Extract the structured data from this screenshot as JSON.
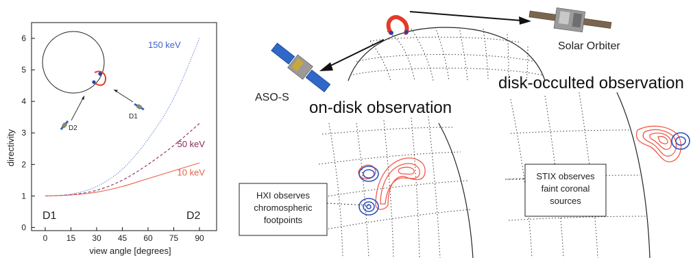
{
  "chart_data": {
    "type": "line",
    "title": "",
    "xlabel": "view angle [degrees]",
    "ylabel": "directivity",
    "xlim": [
      -8,
      100
    ],
    "ylim": [
      -0.1,
      6.5
    ],
    "xticks": [
      "0",
      "15",
      "30",
      "45",
      "60",
      "75",
      "90"
    ],
    "yticks": [
      "0",
      "1",
      "2",
      "3",
      "4",
      "5",
      "6"
    ],
    "grid": false,
    "legend": "inline labels at curve ends",
    "corner_labels": {
      "left": "D1",
      "right": "D2"
    },
    "series": [
      {
        "name": "150 keV",
        "color": "#4060c8",
        "style": "dotted",
        "x": [
          0,
          15,
          30,
          45,
          60,
          75,
          90
        ],
        "y": [
          1.0,
          1.06,
          1.3,
          1.85,
          2.8,
          4.1,
          6.0
        ]
      },
      {
        "name": "50 keV",
        "color": "#8a2a5a",
        "style": "dashed",
        "x": [
          0,
          15,
          30,
          45,
          60,
          75,
          90
        ],
        "y": [
          1.0,
          1.04,
          1.18,
          1.5,
          2.0,
          2.6,
          3.3
        ]
      },
      {
        "name": "10 keV",
        "color": "#e8604a",
        "style": "solid",
        "x": [
          0,
          15,
          30,
          45,
          60,
          75,
          90
        ],
        "y": [
          1.0,
          1.03,
          1.12,
          1.3,
          1.55,
          1.8,
          2.05
        ]
      }
    ],
    "inset": {
      "labels": {
        "d1": "D1",
        "d2": "D2"
      }
    }
  },
  "diagram": {
    "spacecraft": {
      "solar_orbiter": "Solar Orbiter",
      "aso_s": "ASO-S"
    },
    "observations": {
      "on_disk": "on-disk observation",
      "disk_occulted": "disk-occulted observation"
    },
    "boxes": {
      "hxi": [
        "HXI observes",
        "chromospheric",
        "footpoints"
      ],
      "stix": [
        "STIX observes",
        "faint coronal",
        "sources"
      ]
    },
    "colors": {
      "loop_red": "#e23b2a",
      "footpoint_blue": "#2a3fa8",
      "contour_red": "#f0584a",
      "contour_blue": "#3050b8"
    }
  }
}
